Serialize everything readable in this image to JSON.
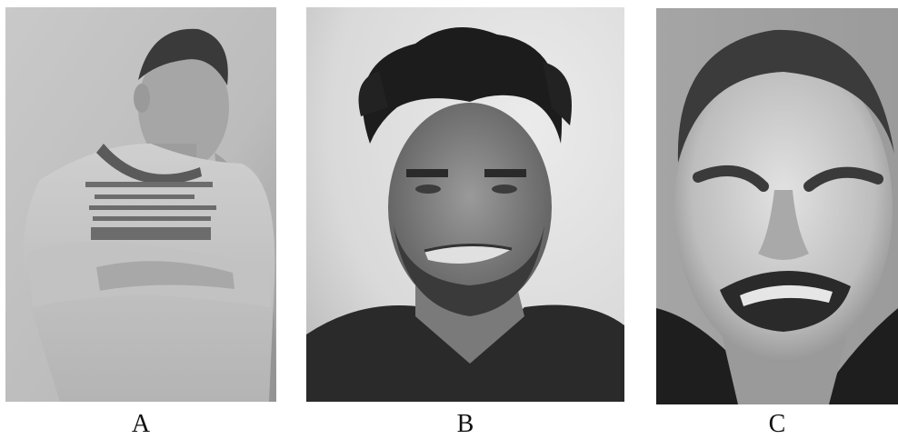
{
  "panels": [
    {
      "label": "A",
      "subject": "photo-man-arms-crossed-looking-down"
    },
    {
      "label": "B",
      "subject": "photo-man-curly-hair-grimace"
    },
    {
      "label": "C",
      "subject": "photo-man-eyes-squeezed-disgust"
    }
  ],
  "colors": {
    "background": "#ffffff",
    "caption_text": "#111111"
  }
}
